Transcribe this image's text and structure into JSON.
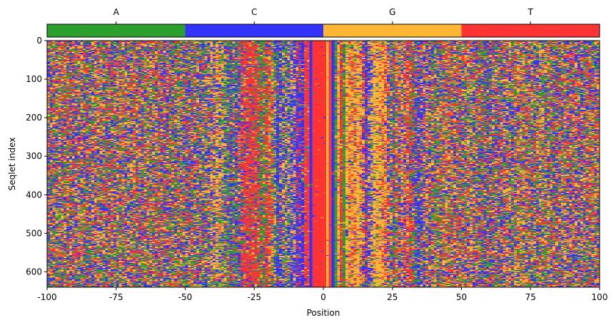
{
  "chart_data": {
    "type": "heatmap",
    "title": "",
    "xlabel": "Position",
    "ylabel": "Seqlet index",
    "xlim": [
      -100,
      100
    ],
    "ylim": [
      640,
      0
    ],
    "x_ticks": [
      -100,
      -75,
      -50,
      -25,
      0,
      25,
      50,
      75,
      100
    ],
    "x_tick_labels": [
      "-100",
      "-75",
      "-50",
      "-25",
      "0",
      "25",
      "50",
      "75",
      "100"
    ],
    "y_ticks": [
      0,
      100,
      200,
      300,
      400,
      500,
      600
    ],
    "y_tick_labels": [
      "0",
      "100",
      "200",
      "300",
      "400",
      "500",
      "600"
    ],
    "num_seqlets": 640,
    "num_positions": 200,
    "colorbar": {
      "position": "top",
      "categories": [
        "A",
        "C",
        "G",
        "T"
      ],
      "colors": [
        "#2ca02c",
        "#3333ff",
        "#ffb733",
        "#ff3333"
      ]
    },
    "center_column_bases": [
      {
        "position": -5,
        "base": "C"
      },
      {
        "position": -4,
        "base": "T"
      },
      {
        "position": -3,
        "base": "T"
      },
      {
        "position": -2,
        "base": "T"
      },
      {
        "position": -1,
        "base": "T"
      },
      {
        "position": 0,
        "base": "T"
      },
      {
        "position": 1,
        "base": "G"
      },
      {
        "position": 2,
        "base": "T"
      },
      {
        "position": 3,
        "base": "C"
      }
    ]
  }
}
